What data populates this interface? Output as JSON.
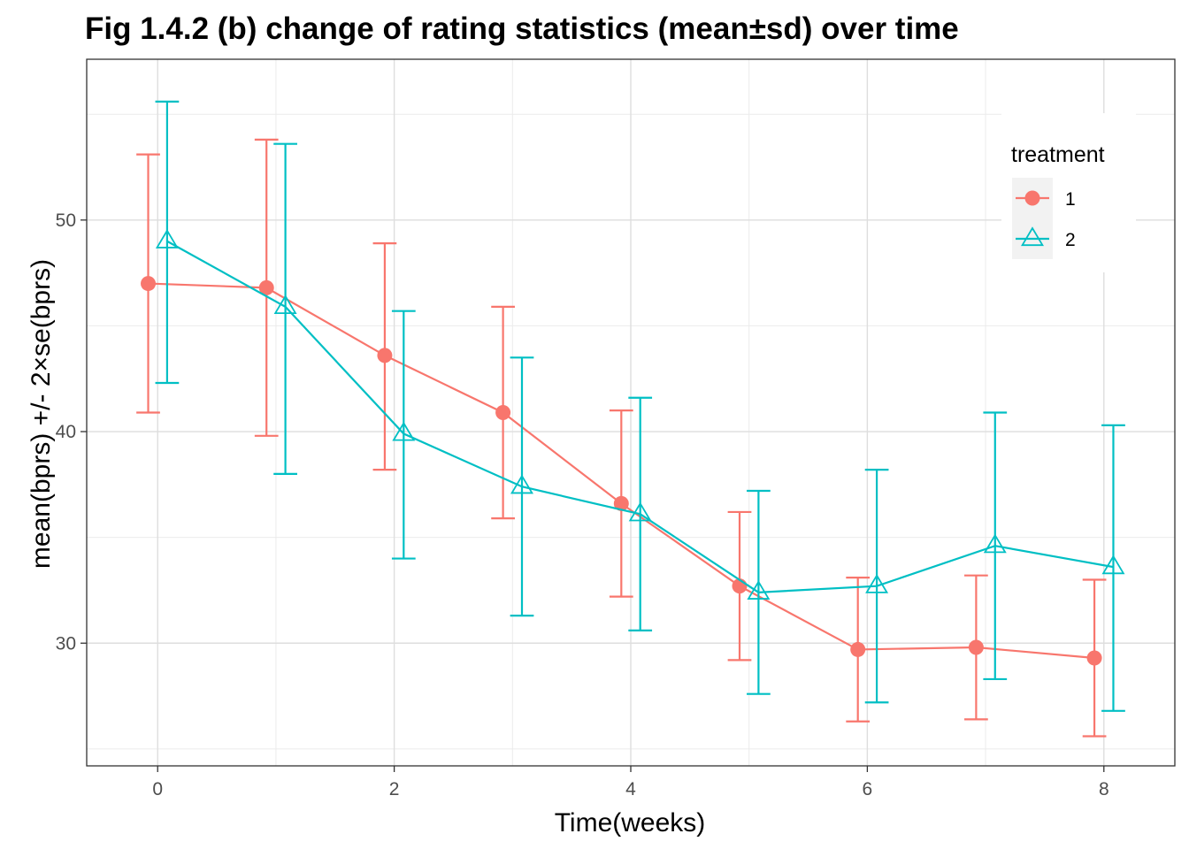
{
  "chart_data": {
    "type": "line",
    "title": "Fig 1.4.2 (b) change of rating statistics (mean±sd) over time",
    "xlabel": "Time(weeks)",
    "ylabel": "mean(bprs) +/- 2×se(bprs)",
    "xlim": [
      -0.6,
      8.6
    ],
    "ylim": [
      24.2,
      57.6
    ],
    "x_ticks": [
      0,
      2,
      4,
      6,
      8
    ],
    "y_ticks": [
      30,
      40,
      50
    ],
    "grid": true,
    "legend": {
      "title": "treatment",
      "position": "top-right"
    },
    "x": [
      0,
      1,
      2,
      3,
      4,
      5,
      6,
      7,
      8
    ],
    "series": [
      {
        "name": "1",
        "color": "#F8766D",
        "marker": "filled-circle",
        "mean": [
          47.0,
          46.8,
          43.6,
          40.9,
          36.6,
          32.7,
          29.7,
          29.8,
          29.3
        ],
        "lower": [
          40.9,
          39.8,
          38.2,
          35.9,
          32.2,
          29.2,
          26.3,
          26.4,
          25.6
        ],
        "upper": [
          53.1,
          53.8,
          48.9,
          45.9,
          41.0,
          36.2,
          33.1,
          33.2,
          33.0
        ]
      },
      {
        "name": "2",
        "color": "#00BFC4",
        "marker": "open-triangle",
        "mean": [
          49.0,
          45.9,
          39.9,
          37.4,
          36.1,
          32.4,
          32.7,
          34.6,
          33.6
        ],
        "lower": [
          42.3,
          38.0,
          34.0,
          31.3,
          30.6,
          27.6,
          27.2,
          28.3,
          26.8
        ],
        "upper": [
          55.6,
          53.6,
          45.7,
          43.5,
          41.6,
          37.2,
          38.2,
          40.9,
          40.3
        ]
      }
    ]
  }
}
